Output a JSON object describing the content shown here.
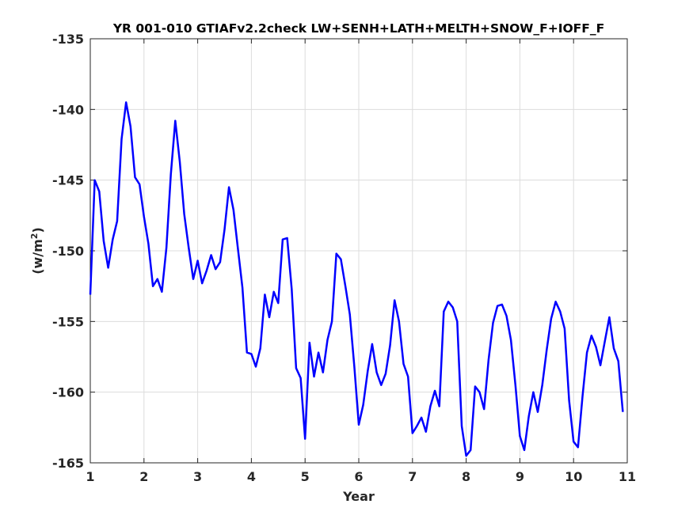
{
  "chart_data": {
    "type": "line",
    "title": "YR 001-010 GTIAFv2.2check LW+SENH+LATH+MELTH+SNOW_F+IOFF_F",
    "xlabel": "Year",
    "ylabel_base": "(w/m",
    "ylabel_sup": "2",
    "ylabel_end": ")",
    "xlim": [
      1,
      11
    ],
    "ylim": [
      -165,
      -135
    ],
    "xticks": [
      1,
      2,
      3,
      4,
      5,
      6,
      7,
      8,
      9,
      10,
      11
    ],
    "yticks": [
      -135,
      -140,
      -145,
      -150,
      -155,
      -160,
      -165
    ],
    "grid": true,
    "series": [
      {
        "color": "#0000ff",
        "x": [
          1.0,
          1.083,
          1.167,
          1.25,
          1.333,
          1.417,
          1.5,
          1.583,
          1.667,
          1.75,
          1.833,
          1.917,
          2.0,
          2.083,
          2.167,
          2.25,
          2.333,
          2.417,
          2.5,
          2.583,
          2.667,
          2.75,
          2.833,
          2.917,
          3.0,
          3.083,
          3.167,
          3.25,
          3.333,
          3.417,
          3.5,
          3.583,
          3.667,
          3.75,
          3.833,
          3.917,
          4.0,
          4.083,
          4.167,
          4.25,
          4.333,
          4.417,
          4.5,
          4.583,
          4.667,
          4.75,
          4.833,
          4.917,
          5.0,
          5.083,
          5.167,
          5.25,
          5.333,
          5.417,
          5.5,
          5.583,
          5.667,
          5.75,
          5.833,
          5.917,
          6.0,
          6.083,
          6.167,
          6.25,
          6.333,
          6.417,
          6.5,
          6.583,
          6.667,
          6.75,
          6.833,
          6.917,
          7.0,
          7.083,
          7.167,
          7.25,
          7.333,
          7.417,
          7.5,
          7.583,
          7.667,
          7.75,
          7.833,
          7.917,
          8.0,
          8.083,
          8.167,
          8.25,
          8.333,
          8.417,
          8.5,
          8.583,
          8.667,
          8.75,
          8.833,
          8.917,
          9.0,
          9.083,
          9.167,
          9.25,
          9.333,
          9.417,
          9.5,
          9.583,
          9.667,
          9.75,
          9.833,
          9.917,
          10.0,
          10.083,
          10.167,
          10.25,
          10.333,
          10.417,
          10.5,
          10.583,
          10.667,
          10.75,
          10.833,
          10.917
        ],
        "values": [
          -153.1,
          -145.0,
          -145.8,
          -149.3,
          -151.2,
          -149.2,
          -147.9,
          -142.1,
          -139.5,
          -141.2,
          -144.8,
          -145.3,
          -147.6,
          -149.5,
          -152.5,
          -152.0,
          -152.9,
          -149.8,
          -144.6,
          -140.8,
          -143.7,
          -147.4,
          -149.8,
          -152.0,
          -150.7,
          -152.3,
          -151.4,
          -150.3,
          -151.3,
          -150.8,
          -148.5,
          -145.5,
          -147.1,
          -149.9,
          -152.6,
          -157.2,
          -157.3,
          -158.2,
          -156.9,
          -153.1,
          -154.7,
          -152.9,
          -153.7,
          -149.2,
          -149.1,
          -152.7,
          -158.3,
          -159.0,
          -163.3,
          -156.5,
          -158.9,
          -157.2,
          -158.6,
          -156.3,
          -155.0,
          -150.2,
          -150.6,
          -152.5,
          -154.5,
          -158.2,
          -162.3,
          -160.9,
          -158.5,
          -156.6,
          -158.6,
          -159.5,
          -158.7,
          -156.7,
          -153.5,
          -155.0,
          -158.0,
          -158.9,
          -162.9,
          -162.4,
          -161.8,
          -162.8,
          -161.0,
          -159.9,
          -161.0,
          -154.3,
          -153.6,
          -154.0,
          -155.0,
          -162.4,
          -164.5,
          -164.1,
          -159.6,
          -160.0,
          -161.2,
          -157.7,
          -155.1,
          -153.9,
          -153.8,
          -154.6,
          -156.3,
          -159.5,
          -163.1,
          -164.1,
          -161.7,
          -160.0,
          -161.4,
          -159.5,
          -157.0,
          -154.8,
          -153.6,
          -154.3,
          -155.5,
          -160.6,
          -163.5,
          -163.9,
          -160.3,
          -157.2,
          -156.0,
          -156.8,
          -158.1,
          -156.4,
          -154.7,
          -156.9,
          -157.8,
          -161.4
        ]
      }
    ]
  }
}
